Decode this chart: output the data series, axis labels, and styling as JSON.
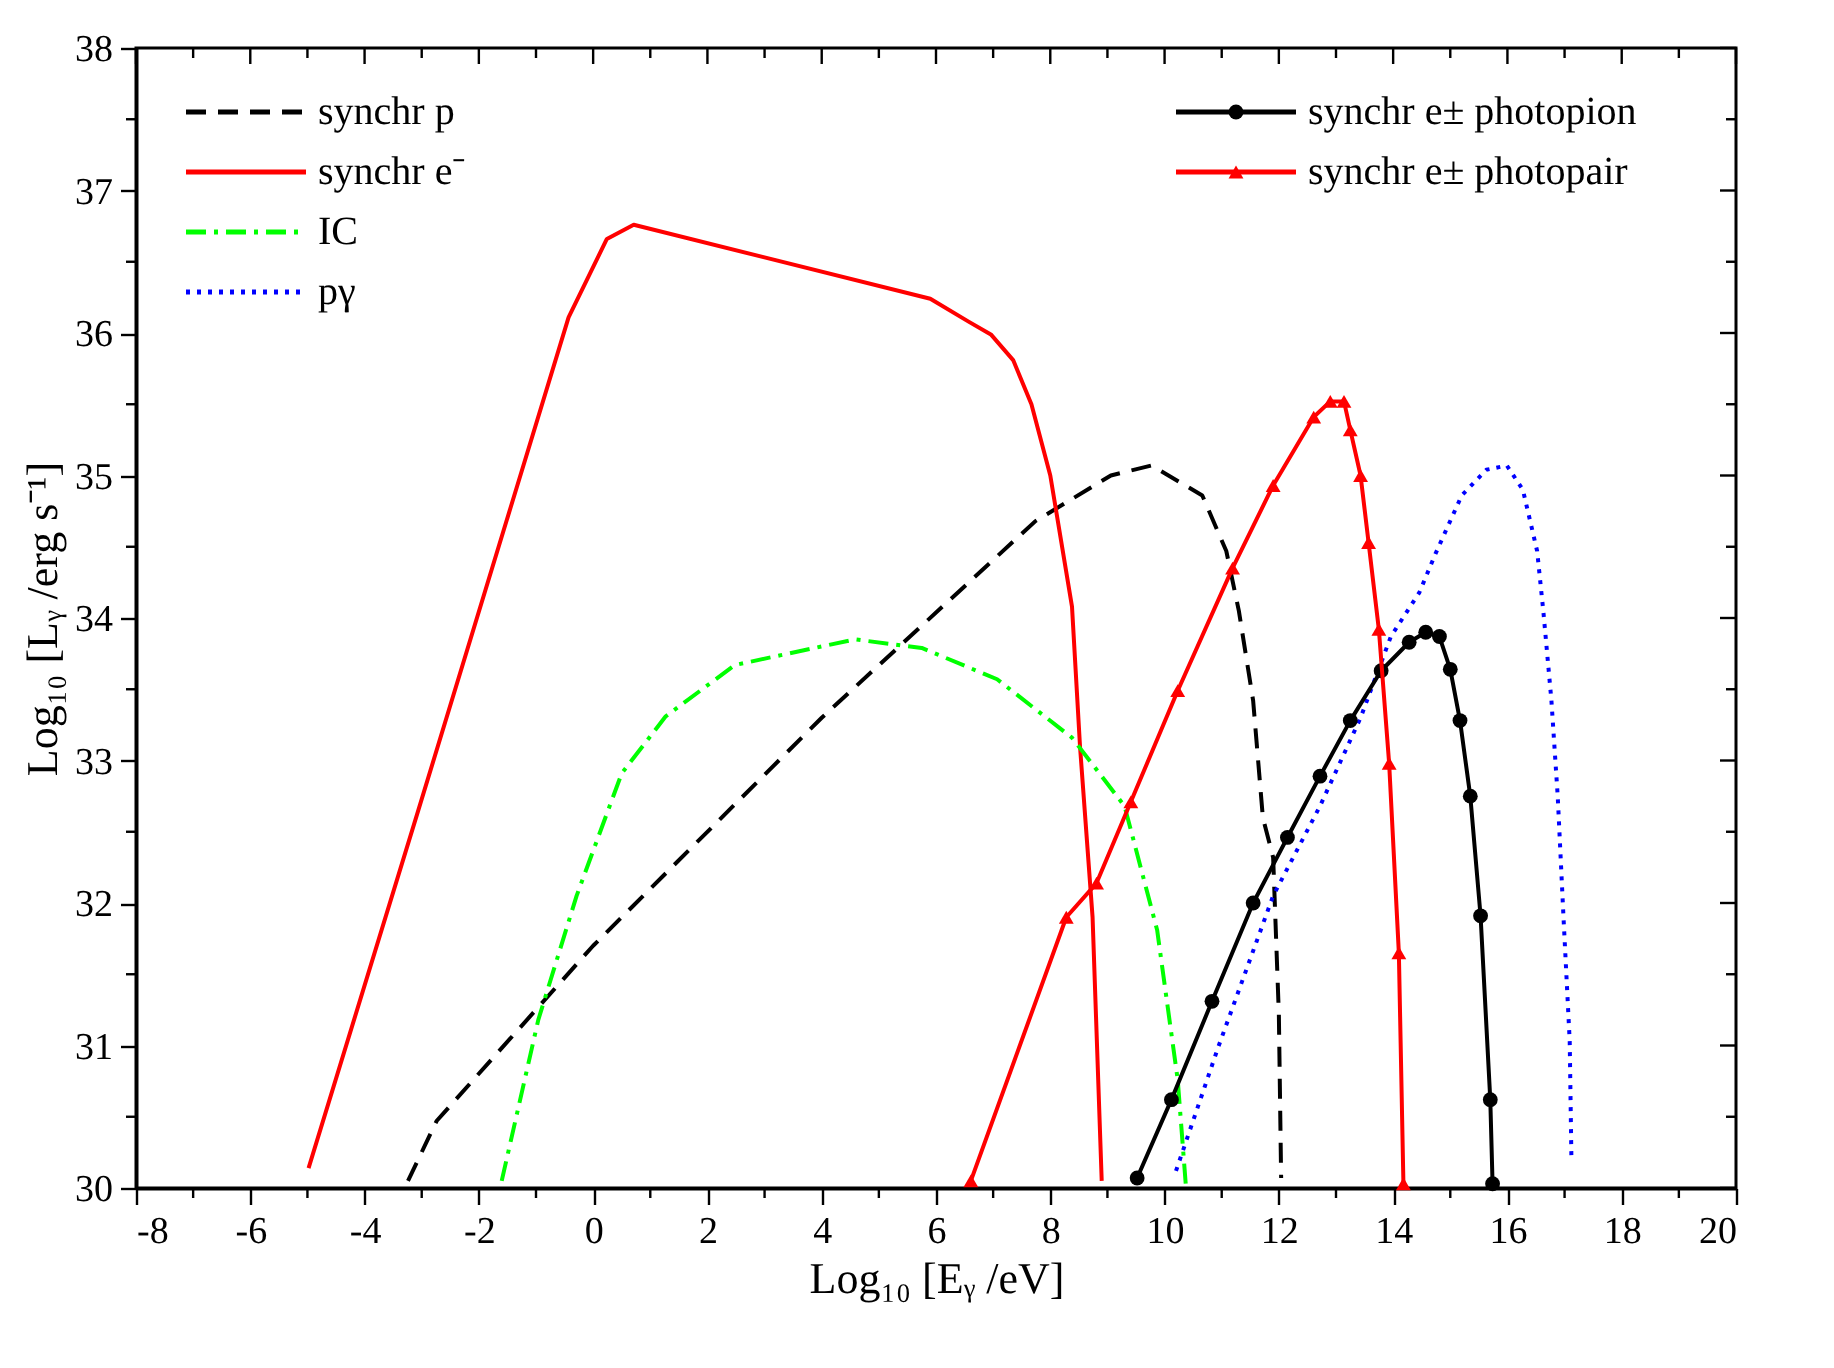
{
  "chart_data": {
    "type": "line",
    "xlabel": "Log₁₀ [Eᵧ /eV]",
    "ylabel": "Log₁₀ [Lᵧ /erg s⁻¹]",
    "xlim": [
      -8,
      20
    ],
    "ylim": [
      30,
      38
    ],
    "xticks": [
      -8,
      {
        "value": -7,
        "label": null
      },
      -6,
      {
        "value": -5,
        "label": null
      },
      -4,
      {
        "value": -3,
        "label": null
      },
      -2,
      {
        "value": -1,
        "label": null
      },
      0,
      {
        "value": 1,
        "label": null
      },
      2,
      {
        "value": 3,
        "label": null
      },
      4,
      {
        "value": 5,
        "label": null
      },
      6,
      {
        "value": 7,
        "label": null
      },
      8,
      {
        "value": 9,
        "label": null
      },
      10,
      {
        "value": 11,
        "label": null
      },
      12,
      {
        "value": 13,
        "label": null
      },
      14,
      {
        "value": 15,
        "label": null
      },
      16,
      {
        "value": 17,
        "label": null
      },
      18,
      {
        "value": 19,
        "label": null
      },
      20
    ],
    "yticks": [
      30,
      {
        "value": 30.5,
        "label": null
      },
      31,
      {
        "value": 31.5,
        "label": null
      },
      32,
      {
        "value": 32.5,
        "label": null
      },
      33,
      {
        "value": 33.5,
        "label": null
      },
      34,
      {
        "value": 34.5,
        "label": null
      },
      35,
      {
        "value": 35.5,
        "label": null
      },
      36,
      {
        "value": 36.5,
        "label": null
      },
      37,
      {
        "value": 37.5,
        "label": null
      },
      38
    ],
    "grid": false,
    "legend": "top",
    "series": [
      {
        "name": "synchr p",
        "color": "#000000",
        "line_style": "dashed",
        "marker": "none",
        "x": [
          -3.24,
          -2.74,
          0,
          4,
          7.74,
          9.06,
          9.77,
          10.66,
          11.08,
          11.3,
          11.55,
          11.72,
          11.9,
          12.0,
          12.04
        ],
        "values": [
          30.05,
          30.47,
          31.7,
          33.3,
          34.68,
          35.0,
          35.07,
          34.86,
          34.47,
          34.05,
          33.42,
          32.6,
          32.32,
          31.22,
          30.07
        ]
      },
      {
        "name": "synchr e⁻",
        "color": "#ff0000",
        "line_style": "solid",
        "marker": "none",
        "x": [
          -4.98,
          -3.06,
          -0.43,
          0.24,
          0.71,
          5.9,
          6.57,
          6.96,
          7.35,
          7.67,
          8.0,
          8.38,
          8.52,
          8.74,
          8.9
        ],
        "values": [
          30.14,
          32.65,
          36.11,
          36.66,
          36.76,
          36.24,
          36.08,
          35.99,
          35.81,
          35.5,
          35.0,
          34.08,
          33.1,
          31.9,
          30.05
        ]
      },
      {
        "name": "IC",
        "color": "#00ff00",
        "line_style": "dashdot",
        "marker": "none",
        "x": [
          -1.6,
          -0.96,
          -0.29,
          0.5,
          1.27,
          2.48,
          4.58,
          5.75,
          7.07,
          8.38,
          9.3,
          9.87,
          10.12,
          10.23,
          10.37
        ],
        "values": [
          30.05,
          31.18,
          32.05,
          32.91,
          33.31,
          33.67,
          33.85,
          33.79,
          33.57,
          33.16,
          32.68,
          31.81,
          31.08,
          30.76,
          30.03
        ]
      },
      {
        "name": "pγ",
        "color": "#0000ff",
        "line_style": "dotted",
        "marker": "none",
        "x": [
          10.2,
          10.94,
          11.9,
          12.72,
          13.43,
          13.96,
          14.46,
          14.74,
          15.2,
          15.63,
          15.99,
          16.27,
          16.52,
          16.63,
          16.77,
          16.88,
          16.98,
          17.09,
          17.12
        ],
        "values": [
          30.12,
          30.99,
          32.05,
          32.68,
          33.3,
          33.87,
          34.18,
          34.45,
          34.86,
          35.04,
          35.07,
          34.9,
          34.47,
          34.04,
          33.42,
          32.75,
          31.91,
          31.03,
          30.2
        ]
      },
      {
        "name": "synchr e± photopion",
        "color": "#000000",
        "line_style": "solid",
        "marker": "circle",
        "x": [
          9.52,
          10.12,
          10.83,
          11.55,
          12.15,
          12.72,
          13.25,
          13.79,
          14.28,
          14.57,
          14.81,
          15.0,
          15.17,
          15.35,
          15.53,
          15.7,
          15.74
        ],
        "values": [
          30.07,
          30.62,
          31.31,
          32.0,
          32.46,
          32.89,
          33.28,
          33.63,
          33.83,
          33.9,
          33.87,
          33.64,
          33.28,
          32.75,
          31.91,
          30.62,
          30.03
        ]
      },
      {
        "name": "synchr e± photopair",
        "color": "#ff0000",
        "line_style": "solid",
        "marker": "triangle",
        "x": [
          6.61,
          8.28,
          8.81,
          9.41,
          10.23,
          11.19,
          11.9,
          12.61,
          12.9,
          13.14,
          13.25,
          13.43,
          13.57,
          13.75,
          13.93,
          14.1,
          14.18
        ],
        "values": [
          30.05,
          31.9,
          32.14,
          32.71,
          33.49,
          34.35,
          34.93,
          35.41,
          35.52,
          35.52,
          35.32,
          35.0,
          34.53,
          33.92,
          32.98,
          31.65,
          30.03
        ]
      }
    ]
  }
}
